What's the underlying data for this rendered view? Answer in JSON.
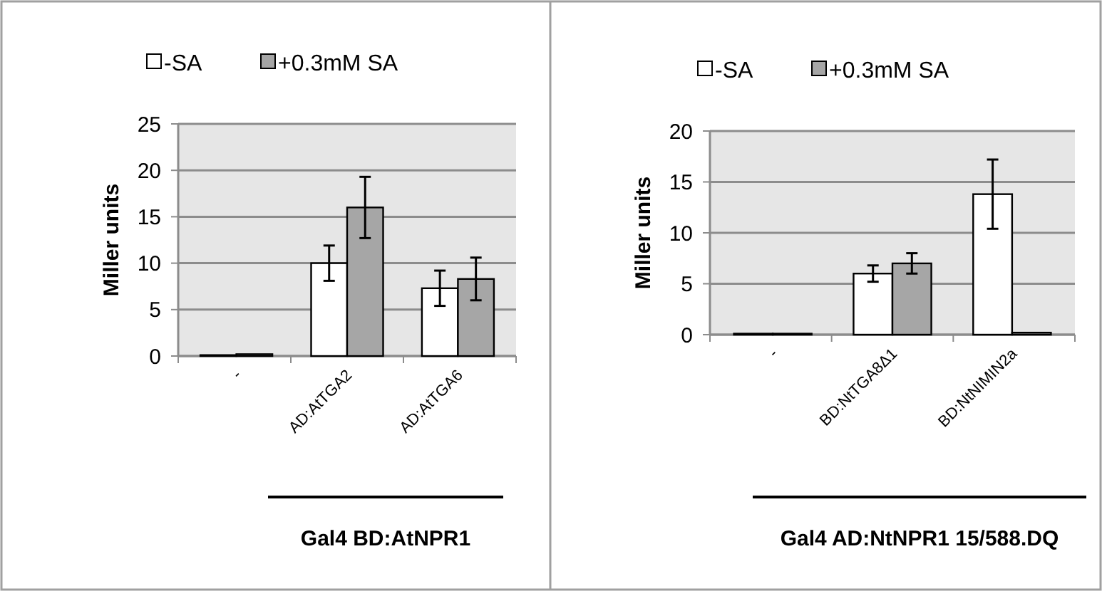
{
  "chart_data": [
    {
      "type": "bar",
      "categories": [
        "-",
        "AD:AtTGA2",
        "AD:AtTGA6"
      ],
      "xlabel": "Gal4 BD:AtNPR1",
      "ylabel": "Miller units",
      "ylim": [
        0,
        25
      ],
      "yticks": [
        0,
        5,
        10,
        15,
        20,
        25
      ],
      "grid": "y",
      "legend": "top",
      "series": [
        {
          "name": "-SA",
          "color": "#ffffff",
          "values": [
            0.1,
            10,
            7.3
          ],
          "errors": [
            null,
            1.9,
            1.9
          ]
        },
        {
          "name": "+0.3mM SA",
          "color": "#a6a6a6",
          "values": [
            0.2,
            16,
            8.3
          ],
          "errors": [
            null,
            3.3,
            2.3
          ]
        }
      ]
    },
    {
      "type": "bar",
      "categories": [
        "-",
        "BD:NtTGA8Δ1",
        "BD:NtNIMIN2a"
      ],
      "xlabel": "Gal4 AD:NtNPR1 15/588.DQ",
      "ylabel": "Miller units",
      "ylim": [
        0,
        20
      ],
      "yticks": [
        0,
        5,
        10,
        15,
        20
      ],
      "grid": "y",
      "legend": "top",
      "series": [
        {
          "name": "-SA",
          "color": "#ffffff",
          "values": [
            0.1,
            6,
            13.8
          ],
          "errors": [
            null,
            0.8,
            3.4
          ]
        },
        {
          "name": "+0.3mM SA",
          "color": "#a6a6a6",
          "values": [
            0.1,
            7,
            0.2
          ],
          "errors": [
            null,
            1,
            null
          ]
        }
      ]
    }
  ]
}
